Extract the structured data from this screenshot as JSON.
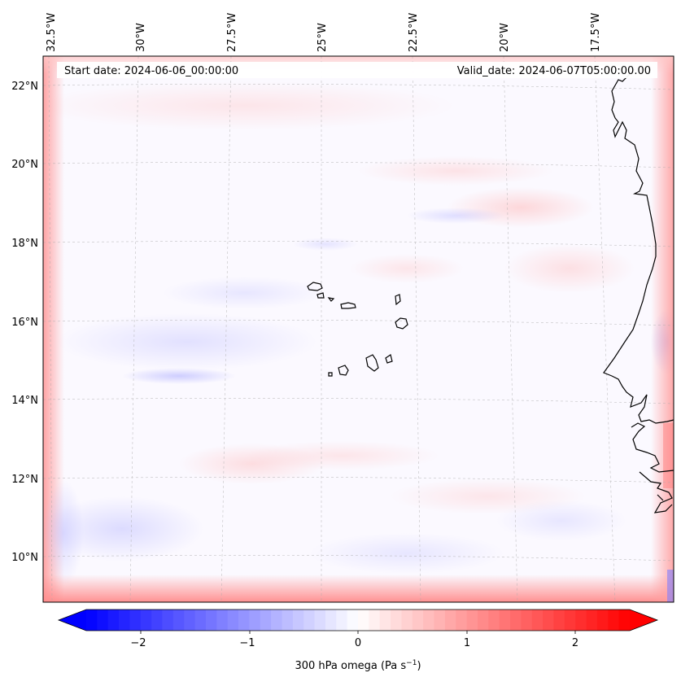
{
  "map": {
    "start_date": "Start date: 2024-06-06_00:00:00",
    "valid_date": "Valid_date: 2024-06-07T05:00:00.00",
    "lon_labels": [
      "32.5°W",
      "30°W",
      "27.5°W",
      "25°W",
      "22.5°W",
      "20°W",
      "17.5°W"
    ],
    "lat_labels": [
      "22°N",
      "20°N",
      "18°N",
      "16°N",
      "14°N",
      "12°N",
      "10°N"
    ]
  },
  "colorbar": {
    "ticks": [
      "−2",
      "−1",
      "0",
      "1",
      "2"
    ],
    "label_main": "300 hPa omega (Pa s",
    "label_exp": "−1",
    "label_close": ")",
    "color_min": "#0000ff",
    "color_mid": "#ffffff",
    "color_max": "#ff0000"
  }
}
